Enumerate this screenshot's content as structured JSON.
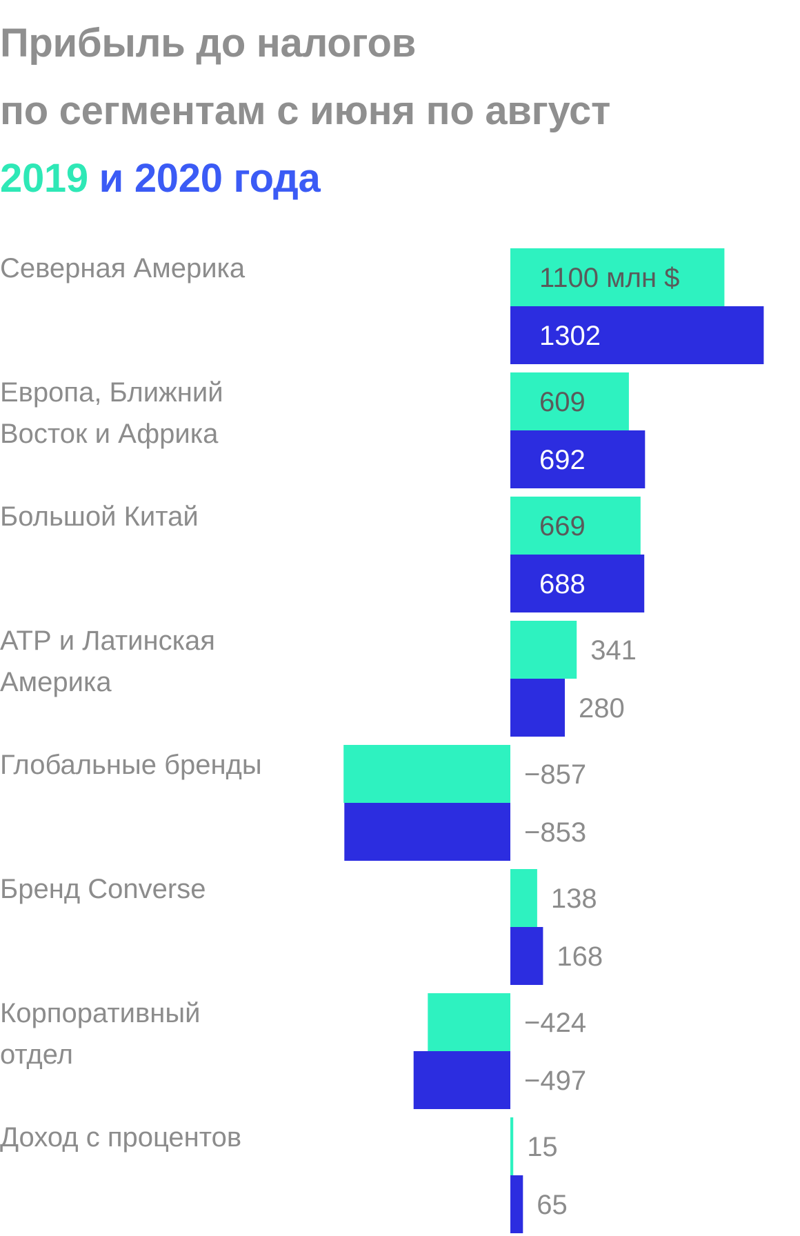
{
  "title": {
    "line1": "Прибыль до налогов",
    "line2": "по сегментам с июня по август",
    "year1": "2019",
    "conj": "и",
    "year2": "2020",
    "suffix": "года"
  },
  "colors": {
    "series_2019": "#2ef2c0",
    "series_2020": "#2c2de0",
    "label_gray": "#8c8c8c",
    "label_dark": "#5a5a5a",
    "label_white": "#ffffff"
  },
  "chart_data": {
    "type": "bar",
    "orientation": "horizontal",
    "unit_label": "млн $",
    "categories": [
      [
        "Северная Америка"
      ],
      [
        "Европа, Ближний",
        "Восток и Африка"
      ],
      [
        "Большой Китай"
      ],
      [
        "АТР и Латинская",
        "Америка"
      ],
      [
        "Глобальные бренды"
      ],
      [
        "Бренд Converse"
      ],
      [
        "Корпоративный",
        "отдел"
      ],
      [
        "Доход с процентов"
      ]
    ],
    "series": [
      {
        "name": "2019",
        "values": [
          1100,
          609,
          669,
          341,
          -857,
          138,
          -424,
          15
        ]
      },
      {
        "name": "2020",
        "values": [
          1302,
          692,
          688,
          280,
          -853,
          168,
          -497,
          65
        ]
      }
    ],
    "value_labels": [
      [
        "1100 млн $",
        "609",
        "669",
        "341",
        "−857",
        "138",
        "−424",
        "15"
      ],
      [
        "1302",
        "692",
        "688",
        "280",
        "−853",
        "168",
        "−497",
        "65"
      ]
    ]
  }
}
